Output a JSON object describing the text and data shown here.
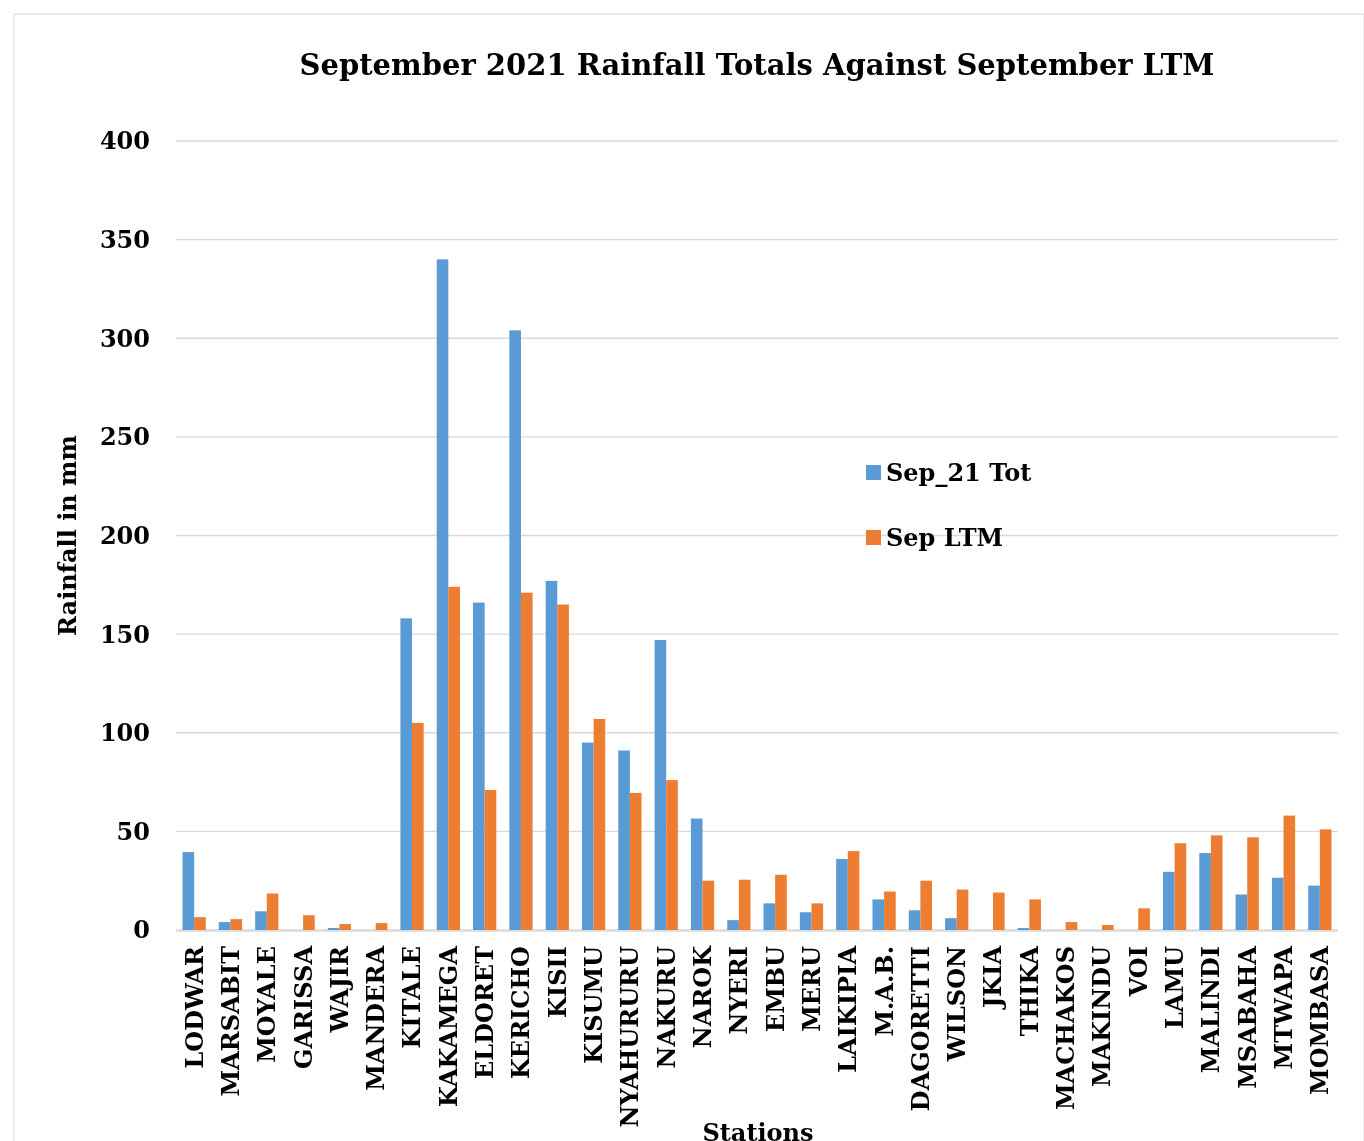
{
  "chart_data": {
    "type": "bar",
    "title": "September 2021 Rainfall Totals Against September LTM",
    "xlabel": "Stations",
    "ylabel": "Rainfall in mm",
    "categories": [
      "LODWAR",
      "MARSABIT",
      "MOYALE",
      "GARISSA",
      "WAJIR",
      "MANDERA",
      "KITALE",
      "KAKAMEGA",
      "ELDORET",
      "KERICHO",
      "KISII",
      "KISUMU",
      "NYAHURURU",
      "NAKURU",
      "NAROK",
      "NYERI",
      "EMBU",
      "MERU",
      "LAIKIPIA",
      "M.A.B.",
      "DAGORETTI",
      "WILSON",
      "JKIA",
      "THIKA",
      "MACHAKOS",
      "MAKINDU",
      "VOI",
      "LAMU",
      "MALINDI",
      "MSABAHA",
      "MTWAPA",
      "MOMBASA"
    ],
    "series": [
      {
        "name": "Sep_21 Tot",
        "color": "#5b9bd5",
        "values": [
          39.5,
          4,
          9.5,
          0,
          1,
          0,
          158,
          340,
          166,
          304,
          177,
          95,
          91,
          147,
          56.5,
          5,
          13.5,
          9,
          36,
          15.5,
          10,
          6,
          0,
          1,
          0,
          0,
          0,
          29.5,
          39,
          18,
          26.5,
          22.5
        ]
      },
      {
        "name": "Sep LTM",
        "color": "#ed7d31",
        "values": [
          6.5,
          5.5,
          18.5,
          7.5,
          3,
          3.5,
          105,
          174,
          71,
          171,
          165,
          107,
          69.5,
          76,
          25,
          25.5,
          28,
          13.5,
          40,
          19.5,
          25,
          20.5,
          19,
          15.5,
          4,
          2.5,
          11,
          44,
          48,
          47,
          58,
          51
        ]
      }
    ],
    "ylim": [
      0,
      400
    ],
    "yticks": [
      0,
      50,
      100,
      150,
      200,
      250,
      300,
      350,
      400
    ],
    "grid": "y",
    "legend": "right"
  }
}
